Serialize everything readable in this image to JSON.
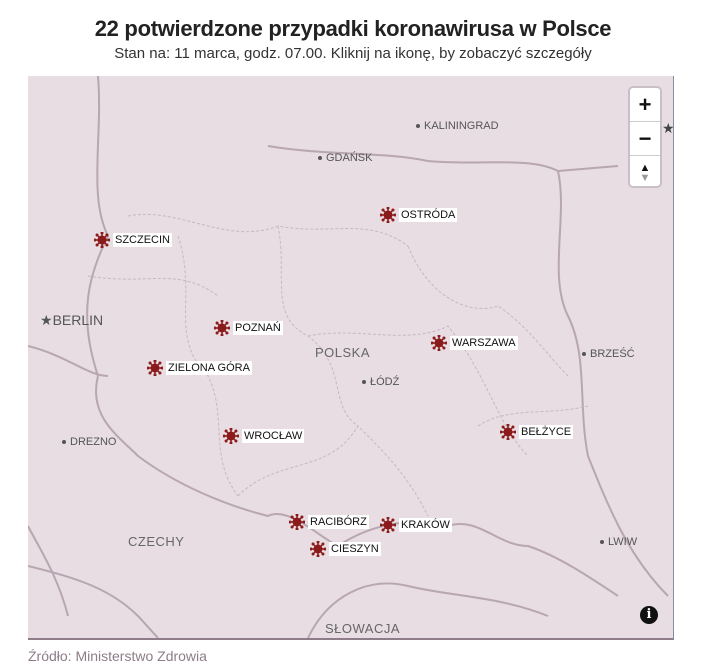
{
  "header": {
    "title": "22 potwierdzone przypadki koronawirusa w Polsce",
    "subtitle": "Stan na: 11 marca, godz. 07.00. Kliknij na ikonę, by zobaczyć szczegóły"
  },
  "map": {
    "marker_color": "#8b1a1a",
    "background": "#e7dde2",
    "cities": [
      "SZCZECIN",
      "OSTRÓDA",
      "POZNAŃ",
      "WARSZAWA",
      "ZIELONA GÓRA",
      "WROCŁAW",
      "BEŁŻYCE",
      "RACIBÓRZ",
      "KRAKÓW",
      "CIESZYN"
    ],
    "places": [
      "KALININGRAD",
      "GDAŃSK",
      "BERLIN",
      "ŁÓDŹ",
      "BRZEŚĆ",
      "DREZNO",
      "LWIW"
    ],
    "countries": [
      "POLSKA",
      "CZECHY",
      "SŁOWACJA"
    ],
    "controls": {
      "zoom_in": "+",
      "zoom_out": "−",
      "north_up": "▲",
      "north_down": "▼",
      "info": "i"
    }
  },
  "footer": {
    "source": "Źródło: Ministerstwo Zdrowia"
  }
}
